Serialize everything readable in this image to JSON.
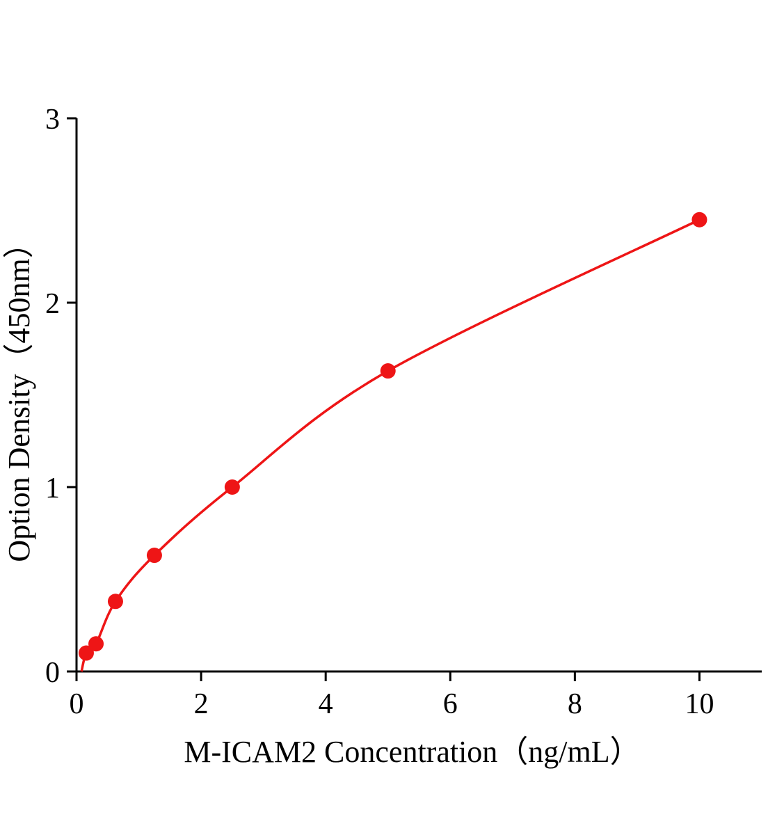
{
  "chart_data": {
    "type": "line",
    "title": "",
    "xlabel": "M-ICAM2 Concentration（ng/mL）",
    "ylabel": "Option Density（450nm）",
    "x": [
      0.156,
      0.313,
      0.625,
      1.25,
      2.5,
      5,
      10
    ],
    "y": [
      0.1,
      0.15,
      0.38,
      0.63,
      1.0,
      1.63,
      2.45
    ],
    "xlim": [
      0,
      11
    ],
    "ylim": [
      0,
      3
    ],
    "xticks": [
      0,
      2,
      4,
      6,
      8,
      10
    ],
    "yticks": [
      0,
      1,
      2,
      3
    ],
    "grid": false,
    "legend": "none",
    "line_color": "#ee1516",
    "marker_color": "#ee1516",
    "axis_color": "#000000"
  }
}
